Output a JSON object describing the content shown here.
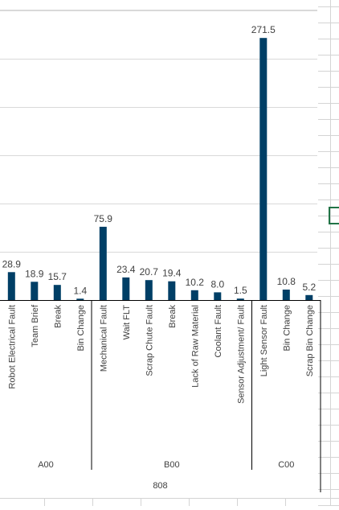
{
  "chart_data": {
    "type": "bar",
    "title": "",
    "xlabel": "",
    "ylabel": "",
    "ylim": [
      0,
      290
    ],
    "grid": true,
    "legend": "none",
    "bar_color": "#003f66",
    "top_group_label": "808",
    "groups": [
      {
        "name": "A00",
        "categories": [
          "Robot Electrical Fault",
          "Team Brief",
          "Break",
          "Bin Change"
        ],
        "values": [
          28.9,
          18.9,
          15.7,
          1.4
        ],
        "labels": [
          "28.9",
          "18.9",
          "15.7",
          "1.4"
        ]
      },
      {
        "name": "B00",
        "categories": [
          "Mechanical Fault",
          "Wait FLT",
          "Scrap Chute Fault",
          "Break",
          "Lack of Raw Material",
          "Coolant Fault",
          "Sensor Adjustment/ Fault"
        ],
        "values": [
          75.9,
          23.4,
          20.7,
          19.4,
          10.2,
          8.0,
          1.5
        ],
        "labels": [
          "75.9",
          "23.4",
          "20.7",
          "19.4",
          "10.2",
          "8.0",
          "1.5"
        ]
      },
      {
        "name": "C00",
        "categories": [
          "Light Sensor Fault",
          "Bin Change",
          "Scrap Bin Change"
        ],
        "values": [
          271.5,
          10.8,
          5.2
        ],
        "labels": [
          "271.5",
          "10.8",
          "5.2"
        ]
      }
    ]
  },
  "colors": {
    "bar": "#003f66",
    "gridline": "#d9d9d9",
    "axis": "#000000",
    "cell_grid": "#d4d4d4",
    "selected_cell": "#217346"
  }
}
